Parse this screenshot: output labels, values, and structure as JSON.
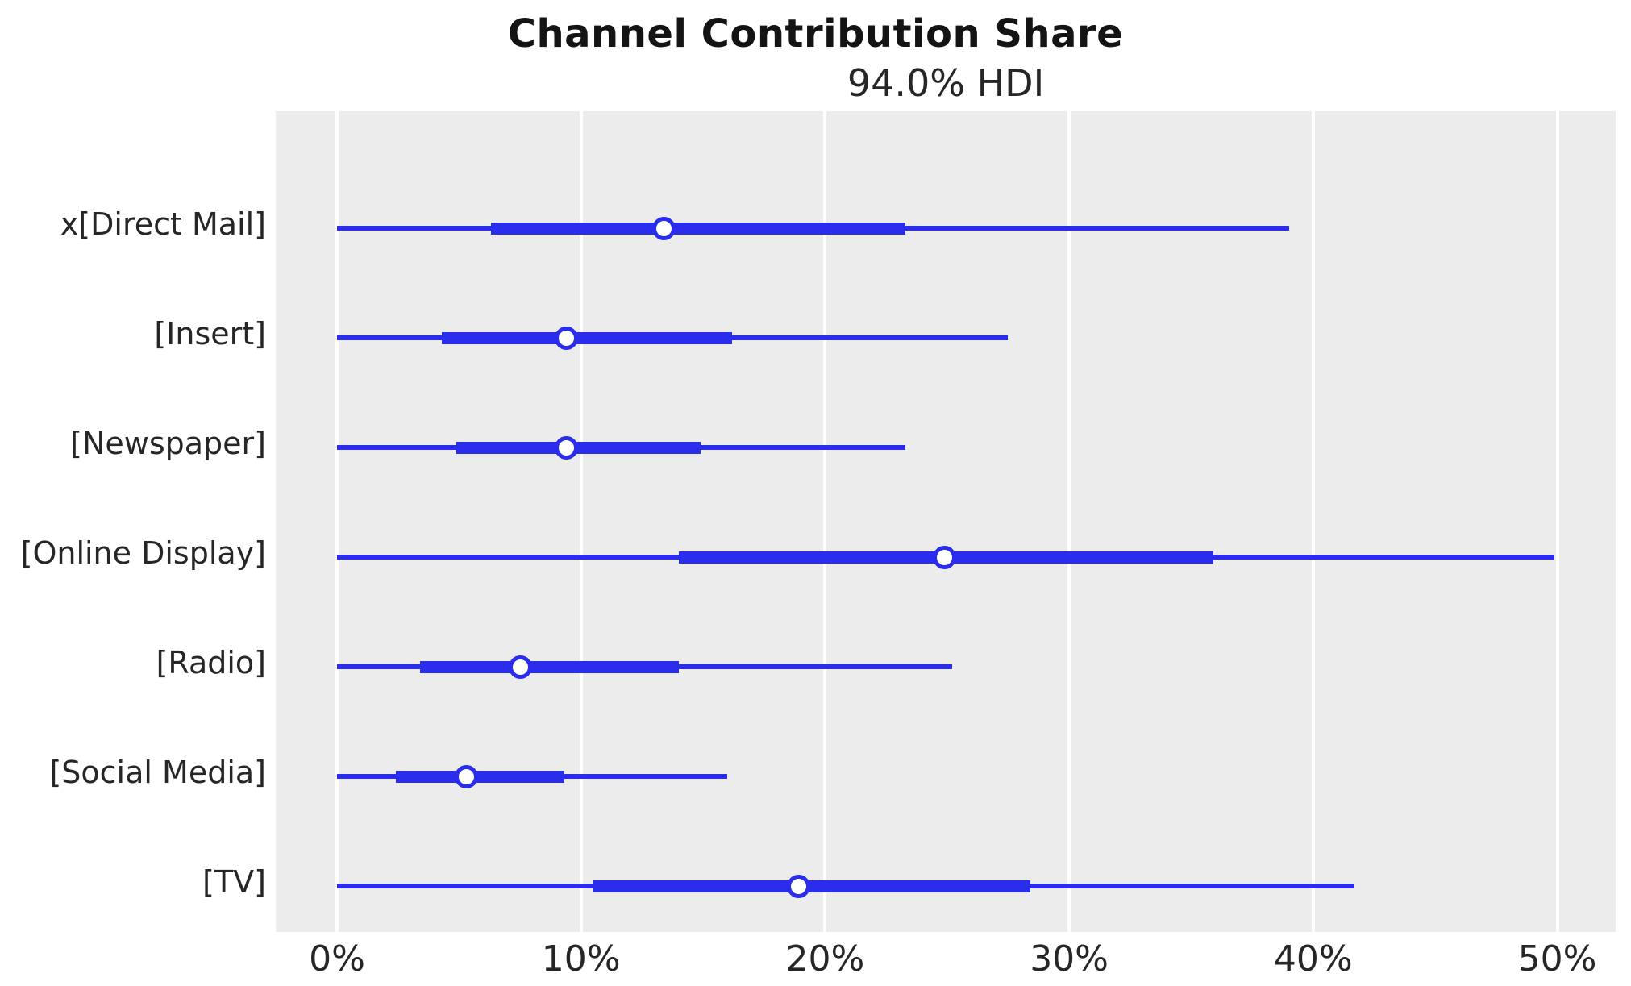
{
  "title": "Channel Contribution Share",
  "subtitle": "94.0% HDI",
  "colors": {
    "line": "#2a2eec",
    "plot_background": "#ececec",
    "gridline": "#ffffff",
    "text": "#262626",
    "marker_fill": "#ffffff"
  },
  "chart_data": {
    "type": "forest",
    "title": "Channel Contribution Share",
    "subtitle": "94.0% HDI",
    "hdi_probability_pct": 94.0,
    "xlim": [
      -2.5,
      52.4
    ],
    "grid": "vertical-white-on-gray",
    "x_tick_values": [
      0,
      10,
      20,
      30,
      40,
      50
    ],
    "x_tick_labels": [
      "0%",
      "10%",
      "20%",
      "30%",
      "40%",
      "50%"
    ],
    "rows": [
      {
        "label": "x[Direct Mail]",
        "hdi_low": 0.0,
        "hdi_high": 39.0,
        "quartile_low": 6.3,
        "quartile_high": 23.3,
        "median": 13.4
      },
      {
        "label": "[Insert]",
        "hdi_low": 0.0,
        "hdi_high": 27.5,
        "quartile_low": 4.3,
        "quartile_high": 16.2,
        "median": 9.4
      },
      {
        "label": "[Newspaper]",
        "hdi_low": 0.0,
        "hdi_high": 23.3,
        "quartile_low": 4.9,
        "quartile_high": 14.9,
        "median": 9.4
      },
      {
        "label": "[Online Display]",
        "hdi_low": 0.0,
        "hdi_high": 49.9,
        "quartile_low": 14.0,
        "quartile_high": 35.9,
        "median": 24.9
      },
      {
        "label": "[Radio]",
        "hdi_low": 0.0,
        "hdi_high": 25.2,
        "quartile_low": 3.4,
        "quartile_high": 14.0,
        "median": 7.5
      },
      {
        "label": "[Social Media]",
        "hdi_low": 0.0,
        "hdi_high": 16.0,
        "quartile_low": 2.4,
        "quartile_high": 9.3,
        "median": 5.3
      },
      {
        "label": "[TV]",
        "hdi_low": 0.0,
        "hdi_high": 41.7,
        "quartile_low": 10.5,
        "quartile_high": 28.4,
        "median": 18.9
      }
    ]
  }
}
